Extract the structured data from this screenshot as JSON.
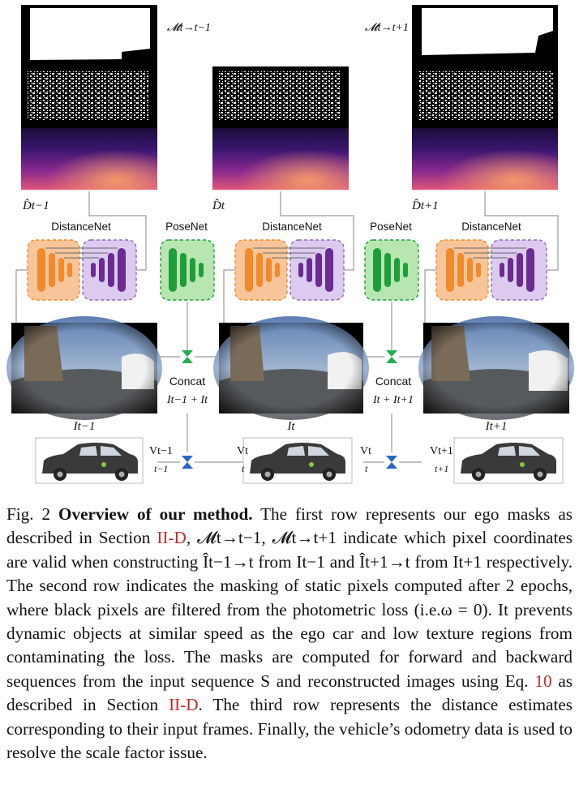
{
  "figure": {
    "mask_labels": {
      "prev": "𝓜t→t−1",
      "next": "𝓜t→t+1"
    },
    "depth_labels": {
      "prev": "D̂t−1",
      "curr": "D̂t",
      "next": "D̂t+1"
    },
    "net_labels": {
      "distancenet_left": "DistanceNet",
      "posenet_left": "PoseNet",
      "distancenet_mid": "DistanceNet",
      "posenet_right": "PoseNet",
      "distancenet_right": "DistanceNet"
    },
    "concat_labels": {
      "left_title": "Concat",
      "left_sub": "It−1 + It",
      "right_title": "Concat",
      "right_sub": "It + It+1"
    },
    "frame_labels": {
      "prev": "It−1",
      "curr": "It",
      "next": "It+1"
    },
    "velocity_labels": {
      "v_prev": "Vt−1",
      "t_prev": "t−1",
      "v_curr": "Vt",
      "t_curr": "t",
      "v_curr2": "Vt",
      "t_curr2": "t",
      "v_next": "Vt+1",
      "t_next": "t+1"
    },
    "colors": {
      "encoder_orange": "#f4a460",
      "encoder_orange_dark": "#f08a2c",
      "decoder_purple": "#cdb8e6",
      "decoder_purple_dark": "#6a2c91",
      "posenet_green": "#a8e0a0",
      "posenet_green_dark": "#1e9e3a",
      "concat_green": "#1eb050",
      "velocity_blue": "#2a66c8",
      "reference_red": "#c62828"
    }
  },
  "caption": {
    "fig_label": "Fig. 2",
    "title": "Overview of our method.",
    "p1": "The first row represents our ego masks as described in Section",
    "ref1": "II-D",
    "p2": ", 𝓜t→t−1, 𝓜t→t+1 indicate which pixel coordinates are valid when constructing Ît−1→t from It−1 and Ît+1→t from It+1 respectively. The second row indicates the masking of static pixels computed after 2 epochs, where black pixels are filtered from the photometric loss (i.e.ω = 0). It prevents dynamic objects at similar speed as the ego car and low texture regions from contaminating the loss. The masks are computed for forward and backward sequences from the input sequence S and reconstructed images using Eq.",
    "ref2": "10",
    "p3": "as described in Section",
    "ref3": "II-D",
    "p4": ". The third row represents the distance estimates corresponding to their input frames. Finally, the vehicle’s odometry data is used to resolve the scale factor issue."
  }
}
